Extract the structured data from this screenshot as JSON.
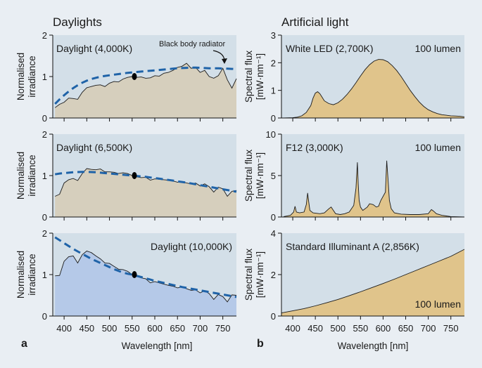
{
  "figure": {
    "section_a_title": "Daylights",
    "section_b_title": "Artificial light",
    "corner_labels": [
      "a",
      "b"
    ],
    "x_axis_title": "Wavelength [nm]",
    "left_y_axis_title": [
      "Normalised",
      "irradiance"
    ],
    "right_y_axis_title": [
      "Spectral flux",
      "[mW·nm⁻¹]"
    ],
    "annotation": "Black body radiator",
    "colors": {
      "plot_background": "#d3dfe8",
      "daylight_fill": "#d6cfbd",
      "daylight_10000K_fill": "#b5c9e8",
      "artificial_fill": "#e0c48b",
      "blackbody_dash": "#1f63a8",
      "normalization_point": "#000000"
    }
  },
  "chart_data": [
    {
      "type": "area",
      "panel": "a-top",
      "label": "Daylight (4,000K)",
      "xlim": [
        375,
        780
      ],
      "xticks": [
        400,
        450,
        500,
        550,
        600,
        650,
        700,
        750
      ],
      "ylim": [
        0,
        2
      ],
      "yticks": [
        0,
        1,
        2
      ],
      "x": [
        380,
        390,
        400,
        410,
        420,
        430,
        440,
        450,
        460,
        470,
        480,
        490,
        500,
        510,
        520,
        530,
        540,
        550,
        560,
        570,
        580,
        590,
        600,
        610,
        620,
        630,
        640,
        650,
        660,
        670,
        680,
        690,
        700,
        710,
        720,
        730,
        740,
        750,
        760,
        770,
        780
      ],
      "series": [
        {
          "values": [
            0.25,
            0.33,
            0.38,
            0.48,
            0.47,
            0.45,
            0.62,
            0.73,
            0.76,
            0.79,
            0.8,
            0.76,
            0.84,
            0.88,
            0.87,
            0.94,
            0.98,
            1.0,
            0.98,
            0.99,
            0.96,
            0.97,
            1.02,
            1.01,
            1.08,
            1.1,
            1.15,
            1.22,
            1.25,
            1.32,
            1.2,
            1.22,
            1.1,
            1.15,
            1.0,
            0.96,
            1.02,
            1.2,
            0.92,
            0.72,
            0.95
          ]
        },
        {
          "name": "Black body radiator",
          "style": "dashed",
          "values": [
            0.34,
            0.45,
            0.55,
            0.64,
            0.72,
            0.79,
            0.85,
            0.9,
            0.94,
            0.97,
            0.995,
            1.015,
            1.03,
            1.045,
            1.06,
            1.075,
            1.09,
            1.1,
            1.11,
            1.12,
            1.13,
            1.14,
            1.15,
            1.16,
            1.17,
            1.18,
            1.19,
            1.2,
            1.205,
            1.21,
            1.215,
            1.215,
            1.21,
            1.205,
            1.2,
            1.2,
            1.2,
            1.195,
            1.19,
            1.185,
            1.18
          ]
        }
      ],
      "marker": {
        "x": 555,
        "y": 1.0
      }
    },
    {
      "type": "area",
      "panel": "a-middle",
      "label": "Daylight (6,500K)",
      "xlim": [
        375,
        780
      ],
      "xticks": [
        400,
        450,
        500,
        550,
        600,
        650,
        700,
        750
      ],
      "ylim": [
        0,
        2
      ],
      "yticks": [
        0,
        1,
        2
      ],
      "x": [
        380,
        390,
        400,
        410,
        420,
        430,
        440,
        450,
        460,
        470,
        480,
        490,
        500,
        510,
        520,
        530,
        540,
        550,
        560,
        570,
        580,
        590,
        600,
        610,
        620,
        630,
        640,
        650,
        660,
        670,
        680,
        690,
        700,
        710,
        720,
        730,
        740,
        750,
        760,
        770,
        780
      ],
      "series": [
        {
          "values": [
            0.5,
            0.55,
            0.82,
            0.9,
            0.93,
            0.88,
            1.05,
            1.17,
            1.15,
            1.14,
            1.16,
            1.09,
            1.09,
            1.08,
            1.05,
            1.07,
            1.05,
            1.0,
            0.97,
            0.95,
            0.96,
            0.89,
            0.92,
            0.91,
            0.9,
            0.89,
            0.87,
            0.84,
            0.85,
            0.82,
            0.8,
            0.82,
            0.75,
            0.8,
            0.73,
            0.6,
            0.72,
            0.68,
            0.5,
            0.62,
            0.64
          ]
        },
        {
          "name": "Black body radiator",
          "style": "dashed",
          "values": [
            1.03,
            1.05,
            1.06,
            1.07,
            1.08,
            1.085,
            1.09,
            1.09,
            1.085,
            1.08,
            1.07,
            1.06,
            1.05,
            1.04,
            1.03,
            1.02,
            1.01,
            1.0,
            0.99,
            0.98,
            0.97,
            0.955,
            0.94,
            0.925,
            0.91,
            0.895,
            0.88,
            0.86,
            0.845,
            0.83,
            0.81,
            0.79,
            0.77,
            0.75,
            0.73,
            0.71,
            0.69,
            0.67,
            0.65,
            0.63,
            0.61
          ]
        }
      ],
      "marker": {
        "x": 555,
        "y": 1.0
      }
    },
    {
      "type": "area",
      "panel": "a-bottom",
      "label": "Daylight (10,000K)",
      "xlim": [
        375,
        780
      ],
      "xticks": [
        400,
        450,
        500,
        550,
        600,
        650,
        700,
        750
      ],
      "ylim": [
        0,
        2
      ],
      "yticks": [
        0,
        1,
        2
      ],
      "x": [
        380,
        390,
        400,
        410,
        420,
        430,
        440,
        450,
        460,
        470,
        480,
        490,
        500,
        510,
        520,
        530,
        540,
        550,
        560,
        570,
        580,
        590,
        600,
        610,
        620,
        630,
        640,
        650,
        660,
        670,
        680,
        690,
        700,
        710,
        720,
        730,
        740,
        750,
        760,
        770,
        780
      ],
      "series": [
        {
          "values": [
            0.97,
            0.98,
            1.32,
            1.43,
            1.45,
            1.28,
            1.48,
            1.57,
            1.53,
            1.45,
            1.38,
            1.28,
            1.27,
            1.2,
            1.13,
            1.12,
            1.08,
            1.0,
            0.96,
            0.92,
            0.9,
            0.8,
            0.83,
            0.8,
            0.77,
            0.74,
            0.72,
            0.68,
            0.7,
            0.66,
            0.62,
            0.63,
            0.56,
            0.61,
            0.54,
            0.4,
            0.52,
            0.47,
            0.34,
            0.51,
            0.5
          ]
        },
        {
          "name": "Black body radiator",
          "style": "dashed",
          "values": [
            1.9,
            1.83,
            1.76,
            1.69,
            1.62,
            1.56,
            1.5,
            1.44,
            1.38,
            1.33,
            1.28,
            1.23,
            1.18,
            1.13,
            1.09,
            1.05,
            1.02,
            1.0,
            0.97,
            0.94,
            0.91,
            0.88,
            0.85,
            0.825,
            0.8,
            0.775,
            0.75,
            0.725,
            0.7,
            0.68,
            0.66,
            0.64,
            0.62,
            0.6,
            0.58,
            0.56,
            0.54,
            0.52,
            0.5,
            0.48,
            0.46
          ]
        }
      ],
      "marker": {
        "x": 555,
        "y": 1.0
      }
    },
    {
      "type": "area",
      "panel": "b-top",
      "label": "White LED (2,700K)",
      "label_right": "100 lumen",
      "xlim": [
        375,
        780
      ],
      "xticks": [
        400,
        450,
        500,
        550,
        600,
        650,
        700,
        750
      ],
      "ylim": [
        0,
        3
      ],
      "yticks": [
        0,
        1,
        2,
        3
      ],
      "x": [
        380,
        400,
        410,
        420,
        430,
        440,
        445,
        450,
        455,
        460,
        465,
        470,
        480,
        490,
        500,
        510,
        520,
        530,
        540,
        550,
        560,
        570,
        580,
        590,
        600,
        610,
        620,
        630,
        640,
        650,
        660,
        670,
        680,
        690,
        700,
        710,
        720,
        730,
        740,
        750,
        760,
        770,
        780
      ],
      "series": [
        {
          "values": [
            0.0,
            0.01,
            0.03,
            0.08,
            0.2,
            0.45,
            0.72,
            0.9,
            0.95,
            0.88,
            0.75,
            0.62,
            0.52,
            0.48,
            0.55,
            0.68,
            0.85,
            1.05,
            1.28,
            1.52,
            1.75,
            1.93,
            2.06,
            2.12,
            2.11,
            2.04,
            1.9,
            1.72,
            1.5,
            1.25,
            1.0,
            0.78,
            0.58,
            0.42,
            0.3,
            0.22,
            0.16,
            0.12,
            0.1,
            0.08,
            0.07,
            0.06,
            0.04
          ]
        }
      ]
    },
    {
      "type": "area",
      "panel": "b-middle",
      "label": "F12 (3,000K)",
      "label_right": "100 lumen",
      "xlim": [
        375,
        780
      ],
      "xticks": [
        400,
        450,
        500,
        550,
        600,
        650,
        700,
        750
      ],
      "ylim": [
        0,
        10
      ],
      "yticks": [
        0,
        5,
        10
      ],
      "x": [
        380,
        395,
        402,
        405,
        408,
        415,
        425,
        430,
        433,
        435,
        438,
        445,
        460,
        470,
        480,
        485,
        490,
        495,
        505,
        515,
        525,
        535,
        540,
        543,
        545,
        547,
        550,
        555,
        565,
        570,
        578,
        585,
        590,
        595,
        605,
        608,
        611,
        614,
        618,
        625,
        640,
        660,
        680,
        700,
        707,
        712,
        718,
        730,
        750,
        780
      ],
      "series": [
        {
          "values": [
            0.05,
            0.2,
            0.6,
            1.3,
            0.6,
            0.5,
            0.6,
            1.5,
            2.9,
            2.0,
            0.8,
            0.5,
            0.4,
            0.5,
            1.0,
            1.2,
            0.8,
            0.4,
            0.3,
            0.4,
            0.6,
            1.4,
            3.5,
            6.6,
            4.0,
            2.0,
            1.2,
            0.8,
            1.2,
            1.6,
            1.5,
            1.2,
            1.3,
            2.0,
            3.0,
            6.8,
            4.5,
            2.0,
            1.0,
            0.5,
            0.35,
            0.3,
            0.3,
            0.4,
            0.9,
            0.7,
            0.4,
            0.2,
            0.05,
            0.0
          ]
        }
      ]
    },
    {
      "type": "area",
      "panel": "b-bottom",
      "label": "Standard Illuminant A (2,856K)",
      "label_right": "100 lumen",
      "xlim": [
        375,
        780
      ],
      "xticks": [
        400,
        450,
        500,
        550,
        600,
        650,
        700,
        750
      ],
      "ylim": [
        0,
        4
      ],
      "yticks": [
        0,
        2,
        4
      ],
      "x": [
        375,
        400,
        425,
        450,
        475,
        500,
        525,
        550,
        575,
        600,
        625,
        650,
        675,
        700,
        725,
        750,
        780
      ],
      "series": [
        {
          "values": [
            0.15,
            0.25,
            0.36,
            0.49,
            0.64,
            0.8,
            0.98,
            1.17,
            1.37,
            1.57,
            1.78,
            2.0,
            2.22,
            2.44,
            2.66,
            2.88,
            3.22
          ]
        }
      ]
    }
  ]
}
